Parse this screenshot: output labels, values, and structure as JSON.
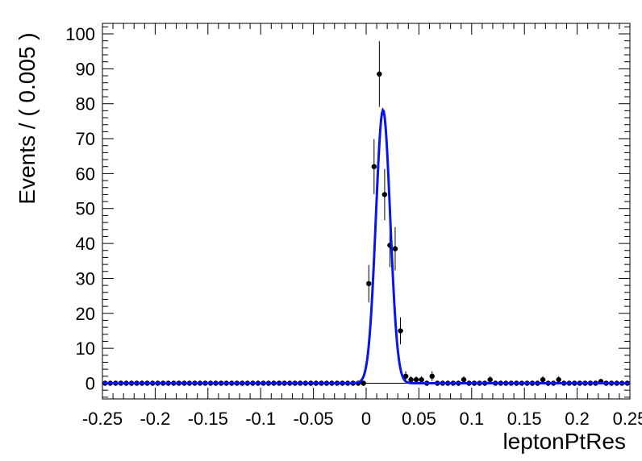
{
  "chart_data": {
    "type": "scatter",
    "xlabel": "leptonPtRes",
    "ylabel": "Events / ( 0.005 )",
    "xlim": [
      -0.25,
      0.25
    ],
    "ylim": [
      -4.5,
      103
    ],
    "grid": false,
    "bin_width": 0.005,
    "x_ticks": [
      -0.25,
      -0.2,
      -0.15,
      -0.1,
      -0.05,
      0,
      0.05,
      0.1,
      0.15,
      0.2,
      0.25
    ],
    "x_tick_labels": [
      "-0.25",
      "-0.2",
      "-0.15",
      "-0.1",
      "-0.05",
      "0",
      "0.05",
      "0.1",
      "0.15",
      "0.2",
      "0.25"
    ],
    "y_ticks": [
      0,
      10,
      20,
      30,
      40,
      50,
      60,
      70,
      80,
      90,
      100
    ],
    "y_tick_labels": [
      "0",
      "10",
      "20",
      "30",
      "40",
      "50",
      "60",
      "70",
      "80",
      "90",
      "100"
    ],
    "series": [
      {
        "kind": "data-points-with-errors",
        "color": "#000000",
        "x": [
          -0.2475,
          -0.2425,
          -0.2375,
          -0.2325,
          -0.2275,
          -0.2225,
          -0.2175,
          -0.2125,
          -0.2075,
          -0.2025,
          -0.1975,
          -0.1925,
          -0.1875,
          -0.1825,
          -0.1775,
          -0.1725,
          -0.1675,
          -0.1625,
          -0.1575,
          -0.1525,
          -0.1475,
          -0.1425,
          -0.1375,
          -0.1325,
          -0.1275,
          -0.1225,
          -0.1175,
          -0.1125,
          -0.1075,
          -0.1025,
          -0.0975,
          -0.0925,
          -0.0875,
          -0.0825,
          -0.0775,
          -0.0725,
          -0.0675,
          -0.0625,
          -0.0575,
          -0.0525,
          -0.0475,
          -0.0425,
          -0.0375,
          -0.0325,
          -0.0275,
          -0.0225,
          -0.0175,
          -0.0125,
          -0.0075,
          -0.0025,
          0.0025,
          0.0075,
          0.0125,
          0.0175,
          0.0225,
          0.0275,
          0.0325,
          0.0375,
          0.0425,
          0.0475,
          0.0525,
          0.0575,
          0.0625,
          0.0675,
          0.0725,
          0.0775,
          0.0825,
          0.0875,
          0.0925,
          0.0975,
          0.1025,
          0.1075,
          0.1125,
          0.1175,
          0.1225,
          0.1275,
          0.1325,
          0.1375,
          0.1425,
          0.1475,
          0.1525,
          0.1575,
          0.1625,
          0.1675,
          0.1725,
          0.1775,
          0.1825,
          0.1875,
          0.1925,
          0.1975,
          0.2025,
          0.2075,
          0.2125,
          0.2175,
          0.2225,
          0.2275,
          0.2325,
          0.2375,
          0.2425,
          0.2475
        ],
        "y": [
          0,
          0,
          0,
          0,
          0,
          0,
          0,
          0,
          0,
          0,
          0,
          0,
          0,
          0,
          0,
          0,
          0,
          0,
          0,
          0,
          0,
          0,
          0,
          0,
          0,
          0,
          0,
          0,
          0,
          0,
          0,
          0,
          0,
          0,
          0,
          0,
          0,
          0,
          0,
          0,
          0,
          0,
          0,
          0,
          0,
          0,
          0,
          0,
          0,
          0,
          28.5,
          62,
          88.5,
          54,
          39.5,
          38.5,
          15,
          2,
          1,
          1,
          1,
          0,
          2,
          0,
          0,
          0,
          0,
          0,
          1,
          0,
          0,
          0,
          0,
          1,
          0,
          0,
          0,
          0,
          0,
          0,
          0,
          0,
          0,
          1,
          0,
          0,
          1,
          0,
          0,
          0,
          0,
          0,
          0,
          0,
          0.5,
          0,
          0,
          0,
          0,
          0
        ]
      },
      {
        "kind": "fit-curve",
        "model": "gaussian",
        "color": "#0a14e6",
        "mean": 0.016,
        "sigma": 0.0068,
        "peak": 78.2
      }
    ]
  }
}
